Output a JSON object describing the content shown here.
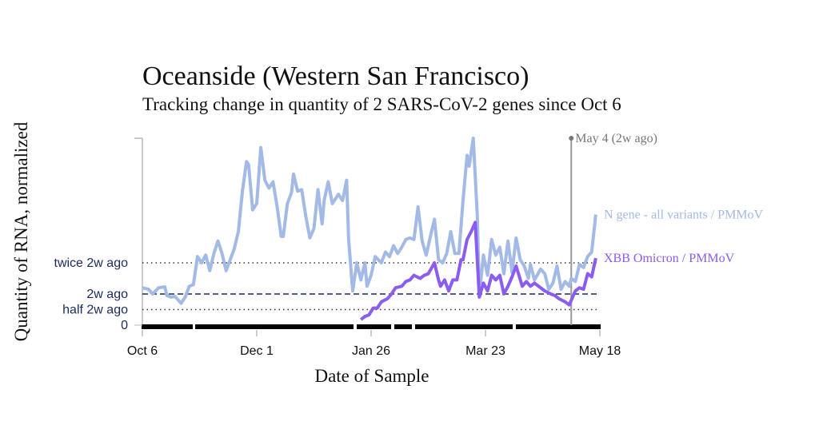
{
  "chart_data": {
    "type": "line",
    "title": "Oceanside (Western San Francisco)",
    "subtitle": "Tracking change in quantity of 2 SARS-CoV-2 genes since Oct 6",
    "x_label": "Date of Sample",
    "y_label": "Quantity of RNA, normalized",
    "xlim": [
      0,
      224
    ],
    "xticks": [
      {
        "value": 0,
        "label": "Oct 6"
      },
      {
        "value": 56,
        "label": "Dec 1"
      },
      {
        "value": 112,
        "label": "Jan 26"
      },
      {
        "value": 168,
        "label": "Mar 23"
      },
      {
        "value": 224,
        "label": "May 18"
      }
    ],
    "ylim": [
      0,
      6
    ],
    "yticks": [
      0,
      {
        "value": 0.5,
        "label": "half 2w ago"
      },
      {
        "value": 1,
        "label": "2w ago"
      },
      {
        "value": 2,
        "label": "twice 2w ago"
      }
    ],
    "annotation": {
      "x": 210,
      "label": "May 4 (2w ago)"
    },
    "series": [
      {
        "name": "N gene - all variants / PMMoV",
        "color": "#a3b9e6",
        "x": [
          0,
          3,
          5,
          8,
          11,
          12,
          14,
          16,
          19,
          21,
          23,
          25,
          27,
          29,
          31,
          33,
          35,
          37,
          39,
          41,
          43,
          45,
          47,
          49,
          51,
          52,
          54,
          56,
          58,
          60,
          62,
          64,
          66,
          68,
          69,
          71,
          73,
          74,
          76,
          78,
          80,
          82,
          84,
          86,
          88,
          89,
          91,
          93,
          95,
          96,
          98,
          100,
          101,
          103,
          105,
          107,
          109,
          110,
          112,
          114,
          117,
          119,
          121,
          123,
          125,
          127,
          129,
          131,
          133,
          135,
          137,
          139,
          141,
          143,
          145,
          147,
          149,
          151,
          153,
          155,
          157,
          159,
          160,
          162,
          164,
          165,
          167,
          169,
          171,
          173,
          175,
          177,
          179,
          181,
          183,
          185,
          187,
          189,
          190,
          192,
          195,
          197,
          199,
          201,
          203,
          205,
          207,
          209,
          210,
          212,
          214,
          216,
          218,
          220,
          222
        ],
        "values": [
          1.2,
          1.15,
          1.0,
          1.2,
          1.23,
          0.95,
          0.9,
          0.92,
          0.7,
          0.9,
          1.25,
          1.3,
          2.2,
          2.0,
          2.25,
          1.75,
          2.3,
          2.7,
          2.3,
          1.75,
          2.1,
          2.45,
          3.0,
          4.3,
          5.25,
          5.15,
          3.7,
          3.9,
          5.7,
          4.65,
          4.4,
          4.6,
          3.8,
          2.85,
          2.85,
          3.9,
          4.25,
          4.85,
          4.3,
          4.35,
          3.5,
          2.8,
          3.1,
          4.35,
          3.25,
          4.0,
          4.6,
          3.9,
          4.1,
          4.2,
          4.0,
          4.65,
          2.75,
          1.1,
          2.0,
          1.45,
          2.0,
          1.25,
          1.6,
          2.2,
          2.0,
          2.35,
          2.2,
          2.55,
          2.3,
          2.5,
          2.75,
          2.8,
          2.75,
          3.8,
          2.7,
          2.25,
          2.85,
          3.4,
          2.1,
          2.0,
          2.3,
          3.0,
          2.3,
          2.3,
          4.0,
          5.45,
          5.1,
          6.0,
          3.5,
          0.95,
          2.25,
          1.6,
          2.75,
          2.25,
          2.5,
          1.65,
          2.7,
          1.7,
          2.8,
          2.1,
          1.9,
          1.5,
          1.95,
          1.45,
          1.8,
          1.65,
          1.15,
          1.35,
          1.9,
          1.15,
          1.4,
          1.25,
          1.5,
          1.4,
          1.95,
          1.85,
          2.2,
          2.35,
          3.55
        ]
      },
      {
        "name": "XBB Omicron / PMMoV",
        "color": "#8a5cf0",
        "x": [
          107,
          109,
          111,
          113,
          115,
          117,
          120,
          122,
          124,
          127,
          129,
          131,
          133,
          136,
          138,
          140,
          143,
          145,
          146,
          148,
          150,
          152,
          154,
          156,
          157,
          159,
          161,
          163,
          165,
          167,
          169,
          171,
          173,
          175,
          177,
          179,
          181,
          183,
          186,
          188,
          190,
          192,
          195,
          197,
          200,
          202,
          204,
          207,
          209,
          210,
          212,
          214,
          216,
          218,
          220,
          222
        ],
        "values": [
          0.18,
          0.28,
          0.33,
          0.55,
          0.55,
          0.75,
          0.85,
          1.0,
          1.2,
          1.25,
          1.4,
          1.45,
          1.6,
          1.5,
          1.6,
          1.65,
          2.0,
          1.45,
          1.25,
          1.45,
          1.1,
          1.45,
          1.45,
          2.1,
          2.1,
          2.75,
          3.0,
          3.3,
          0.9,
          1.35,
          1.1,
          1.6,
          1.45,
          1.6,
          1.0,
          1.25,
          1.55,
          1.9,
          1.25,
          1.4,
          1.25,
          1.35,
          1.2,
          1.1,
          1.0,
          0.95,
          0.85,
          0.75,
          0.65,
          0.8,
          1.1,
          1.2,
          1.15,
          1.65,
          1.55,
          2.15
        ]
      }
    ]
  }
}
